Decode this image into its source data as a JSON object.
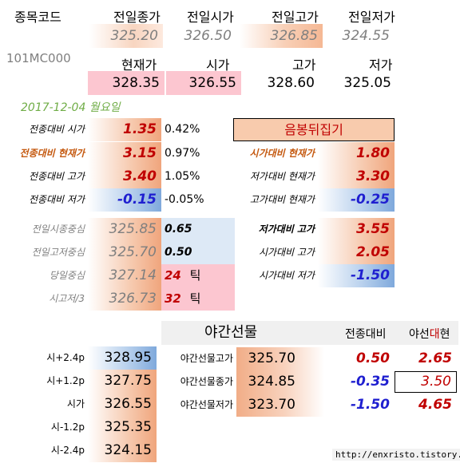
{
  "header": {
    "code_label": "종목코드",
    "code_value": "101MC000",
    "prev_labels": [
      "전일종가",
      "전일시가",
      "전일고가",
      "전일저가"
    ],
    "prev_values": [
      "325.20",
      "326.50",
      "326.85",
      "324.55"
    ],
    "curr_labels": [
      "현재가",
      "시가",
      "고가",
      "저가"
    ],
    "curr_values": [
      "328.35",
      "326.55",
      "328.60",
      "325.05"
    ]
  },
  "date": "2017-12-04  월요일",
  "compare_left": [
    {
      "label": "전종대비 시가",
      "value": "1.35",
      "pct": "0.42%"
    },
    {
      "label": "전종대비 현재가",
      "value": "3.15",
      "pct": "0.97%"
    },
    {
      "label": "전종대비 고가",
      "value": "3.40",
      "pct": "1.05%"
    },
    {
      "label": "전종대비 저가",
      "value": "-0.15",
      "pct": "-0.05%"
    }
  ],
  "special_title": "음봉뒤집기",
  "compare_right": [
    {
      "label": "시가대비 현재가",
      "value": "1.80"
    },
    {
      "label": "저가대비 현재가",
      "value": "3.30"
    },
    {
      "label": "고가대비 현재가",
      "value": "-0.25"
    }
  ],
  "centers": [
    {
      "label": "전일시종중심",
      "value": "325.85",
      "side": "0.65"
    },
    {
      "label": "전일고저중심",
      "value": "325.70",
      "side": "0.50"
    },
    {
      "label": "당일중심",
      "value": "327.14",
      "ticks": "24",
      "tick_unit": "틱"
    },
    {
      "label": "시고저/3",
      "value": "326.73",
      "ticks": "32",
      "tick_unit": "틱"
    }
  ],
  "right_mid": [
    {
      "label": "저가대비 고가",
      "value": "3.55"
    },
    {
      "label": "시가대비 고가",
      "value": "2.05"
    },
    {
      "label": "시가대비 저가",
      "value": "-1.50"
    }
  ],
  "night": {
    "title": "야간선물",
    "col1": "전종대비",
    "col2_a": "야선",
    "col2_b": "대",
    "col2_c": "현",
    "rows": [
      {
        "label": "야간선물고가",
        "value": "325.70",
        "diff": "0.50",
        "vs": "2.65"
      },
      {
        "label": "야간선물종가",
        "value": "324.85",
        "diff": "-0.35",
        "vs": "3.50"
      },
      {
        "label": "야간선물저가",
        "value": "323.70",
        "diff": "-1.50",
        "vs": "4.65"
      }
    ]
  },
  "levels": [
    {
      "label": "시+2.4p",
      "value": "328.95"
    },
    {
      "label": "시+1.2p",
      "value": "327.75"
    },
    {
      "label": "시가",
      "value": "326.55"
    },
    {
      "label": "시-1.2p",
      "value": "325.35"
    },
    {
      "label": "시-2.4p",
      "value": "324.15"
    }
  ],
  "watermark": "http://enxristo.tistory.com",
  "colors": {
    "red": "#c00000",
    "blue": "#1f1fd0",
    "orange_text": "#c55a11",
    "green": "#70ad47"
  }
}
